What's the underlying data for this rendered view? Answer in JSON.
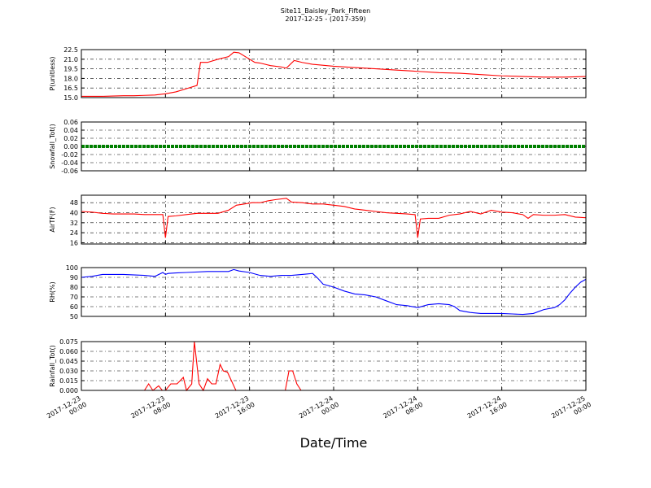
{
  "chart_data": [
    {
      "type": "line",
      "title": "Site11_Baisley_Park_Fifteen",
      "subtitle": "2017-12-25 - (2017-359)",
      "ylabel": "P(unitless)",
      "color": "#ff0000",
      "xlim": [
        "2017-12-23 00:00",
        "2017-12-25 00:00"
      ],
      "ylim": [
        15,
        22.5
      ],
      "yticks": [
        {
          "value": 15,
          "label": "15.0"
        },
        16.5,
        {
          "value": 18,
          "label": "18.0"
        },
        19.5,
        {
          "value": 21,
          "label": "21.0"
        },
        22.5
      ],
      "grid": true,
      "x": [
        "2017-12-23 00:00",
        "2017-12-23 01:00",
        "2017-12-23 02:00",
        "2017-12-23 03:00",
        "2017-12-23 04:00",
        "2017-12-23 05:00",
        "2017-12-23 06:00",
        "2017-12-23 07:00",
        "2017-12-23 08:00",
        "2017-12-23 09:00",
        "2017-12-23 10:00",
        "2017-12-23 11:00",
        "2017-12-23 11:20",
        "2017-12-23 12:00",
        "2017-12-23 13:00",
        "2017-12-23 14:00",
        "2017-12-23 14:30",
        "2017-12-23 15:00",
        "2017-12-23 16:00",
        "2017-12-23 16:30",
        "2017-12-23 17:00",
        "2017-12-23 18:00",
        "2017-12-23 19:00",
        "2017-12-23 19:30",
        "2017-12-23 20:15",
        "2017-12-23 21:00",
        "2017-12-23 22:00",
        "2017-12-24 00:00",
        "2017-12-24 02:00",
        "2017-12-24 04:00",
        "2017-12-24 06:00",
        "2017-12-24 08:00",
        "2017-12-24 10:00",
        "2017-12-24 12:00",
        "2017-12-24 14:00",
        "2017-12-24 16:00",
        "2017-12-24 18:00",
        "2017-12-24 20:00",
        "2017-12-24 22:00",
        "2017-12-25 00:00"
      ],
      "values": [
        15.2,
        15.2,
        15.2,
        15.25,
        15.3,
        15.3,
        15.35,
        15.4,
        15.6,
        15.9,
        16.4,
        16.9,
        20.5,
        20.5,
        21.0,
        21.4,
        22.1,
        22.0,
        21.0,
        20.5,
        20.4,
        20.0,
        19.8,
        19.6,
        20.8,
        20.5,
        20.2,
        19.9,
        19.7,
        19.5,
        19.3,
        19.1,
        18.9,
        18.8,
        18.6,
        18.4,
        18.3,
        18.2,
        18.2,
        18.3
      ]
    },
    {
      "type": "line",
      "ylabel": "Snowfall_Tot()",
      "color": "#008000",
      "xlim": [
        "2017-12-23 00:00",
        "2017-12-25 00:00"
      ],
      "ylim": [
        -0.06,
        0.06
      ],
      "yticks": [
        -0.06,
        -0.04,
        -0.02,
        {
          "value": 0,
          "label": "0.00"
        },
        0.02,
        0.04,
        0.06
      ],
      "grid": true,
      "x": [
        "2017-12-23 00:00",
        "2017-12-23 02:00",
        "2017-12-23 04:00",
        "2017-12-23 06:00",
        "2017-12-23 08:00",
        "2017-12-23 10:00",
        "2017-12-23 12:00",
        "2017-12-23 14:00",
        "2017-12-23 16:00",
        "2017-12-23 18:00",
        "2017-12-23 20:00",
        "2017-12-23 22:00",
        "2017-12-24 00:00",
        "2017-12-24 02:00",
        "2017-12-24 04:00",
        "2017-12-24 06:00",
        "2017-12-24 08:00",
        "2017-12-24 10:00",
        "2017-12-24 12:00",
        "2017-12-24 14:00",
        "2017-12-24 16:00",
        "2017-12-24 18:00",
        "2017-12-24 20:00",
        "2017-12-24 22:00",
        "2017-12-25 00:00"
      ],
      "values": [
        0,
        0,
        0,
        0,
        0,
        0,
        0,
        0,
        0,
        0,
        0,
        0,
        0,
        0,
        0,
        0,
        0,
        0,
        0,
        0,
        0,
        0,
        0,
        0,
        0
      ]
    },
    {
      "type": "line",
      "ylabel": "AirTF(F)",
      "color": "#ff0000",
      "xlim": [
        "2017-12-23 00:00",
        "2017-12-25 00:00"
      ],
      "ylim": [
        15,
        54
      ],
      "yticks": [
        16,
        24,
        32,
        40,
        48
      ],
      "grid": true,
      "x": [
        "2017-12-23 00:00",
        "2017-12-23 01:00",
        "2017-12-23 02:00",
        "2017-12-23 03:00",
        "2017-12-23 04:00",
        "2017-12-23 05:00",
        "2017-12-23 06:00",
        "2017-12-23 07:00",
        "2017-12-23 07:45",
        "2017-12-23 08:00",
        "2017-12-23 08:15",
        "2017-12-23 09:00",
        "2017-12-23 10:00",
        "2017-12-23 11:00",
        "2017-12-23 12:00",
        "2017-12-23 13:00",
        "2017-12-23 14:00",
        "2017-12-23 14:45",
        "2017-12-23 15:30",
        "2017-12-23 16:15",
        "2017-12-23 17:00",
        "2017-12-23 17:45",
        "2017-12-23 18:30",
        "2017-12-23 19:30",
        "2017-12-23 20:00",
        "2017-12-23 21:00",
        "2017-12-23 22:00",
        "2017-12-23 23:00",
        "2017-12-24 00:00",
        "2017-12-24 01:00",
        "2017-12-24 02:00",
        "2017-12-24 03:00",
        "2017-12-24 04:00",
        "2017-12-24 05:00",
        "2017-12-24 06:00",
        "2017-12-24 07:00",
        "2017-12-24 07:45",
        "2017-12-24 08:00",
        "2017-12-24 08:15",
        "2017-12-24 09:00",
        "2017-12-24 10:00",
        "2017-12-24 11:00",
        "2017-12-24 12:00",
        "2017-12-24 13:00",
        "2017-12-24 14:00",
        "2017-12-24 15:00",
        "2017-12-24 16:00",
        "2017-12-24 17:00",
        "2017-12-24 18:00",
        "2017-12-24 18:30",
        "2017-12-24 19:00",
        "2017-12-24 20:00",
        "2017-12-24 21:00",
        "2017-12-24 22:00",
        "2017-12-24 23:00",
        "2017-12-25 00:00"
      ],
      "values": [
        41,
        40.5,
        39.5,
        39,
        39,
        39,
        38.5,
        38.5,
        38.5,
        20,
        37,
        37.5,
        38.5,
        39.5,
        39.5,
        39.5,
        42,
        46,
        47,
        48,
        48,
        49.5,
        50.5,
        51.5,
        48.5,
        48,
        47,
        47,
        46,
        45,
        43,
        42,
        41,
        40,
        39.5,
        39,
        38.5,
        20,
        35,
        35.5,
        35.5,
        38,
        39,
        41,
        39,
        42,
        40.5,
        40,
        38.5,
        35.5,
        38.5,
        38,
        38,
        38.5,
        36.5,
        36
      ]
    },
    {
      "type": "line",
      "ylabel": "RH(%)",
      "color": "#0000ff",
      "xlim": [
        "2017-12-23 00:00",
        "2017-12-25 00:00"
      ],
      "ylim": [
        50,
        100
      ],
      "yticks": [
        50,
        60,
        70,
        80,
        90,
        100
      ],
      "grid": true,
      "x": [
        "2017-12-23 00:00",
        "2017-12-23 01:00",
        "2017-12-23 02:00",
        "2017-12-23 04:00",
        "2017-12-23 06:00",
        "2017-12-23 07:00",
        "2017-12-23 07:45",
        "2017-12-23 08:00",
        "2017-12-23 08:15",
        "2017-12-23 09:00",
        "2017-12-23 10:00",
        "2017-12-23 12:00",
        "2017-12-23 14:00",
        "2017-12-23 14:30",
        "2017-12-23 15:00",
        "2017-12-23 16:00",
        "2017-12-23 17:00",
        "2017-12-23 18:00",
        "2017-12-23 19:00",
        "2017-12-23 20:00",
        "2017-12-23 21:00",
        "2017-12-23 22:00",
        "2017-12-23 22:30",
        "2017-12-23 23:00",
        "2017-12-24 00:00",
        "2017-12-24 01:00",
        "2017-12-24 02:00",
        "2017-12-24 03:00",
        "2017-12-24 04:00",
        "2017-12-24 05:00",
        "2017-12-24 06:00",
        "2017-12-24 07:00",
        "2017-12-24 08:00",
        "2017-12-24 09:00",
        "2017-12-24 10:00",
        "2017-12-24 11:00",
        "2017-12-24 11:30",
        "2017-12-24 12:00",
        "2017-12-24 13:00",
        "2017-12-24 14:00",
        "2017-12-24 15:00",
        "2017-12-24 16:00",
        "2017-12-24 17:00",
        "2017-12-24 18:00",
        "2017-12-24 19:00",
        "2017-12-24 20:00",
        "2017-12-24 21:00",
        "2017-12-24 21:30",
        "2017-12-24 22:00",
        "2017-12-24 22:30",
        "2017-12-24 23:00",
        "2017-12-24 23:30",
        "2017-12-25 00:00"
      ],
      "values": [
        90,
        91,
        93,
        93,
        92,
        91,
        95,
        93,
        94,
        94.5,
        95,
        96,
        96,
        98,
        96.5,
        95,
        92,
        91,
        92,
        92,
        93,
        94,
        89,
        83,
        80,
        76,
        73,
        72,
        70,
        66,
        62,
        61,
        59,
        62,
        63,
        62,
        60,
        56,
        54,
        53,
        53,
        53,
        52.5,
        52,
        53,
        57,
        59,
        62,
        67,
        74,
        80,
        85,
        88
      ]
    },
    {
      "type": "line",
      "ylabel": "Rainfall_Tot()",
      "xlabel": "Date/Time",
      "color": "#ff0000",
      "xlim": [
        "2017-12-23 00:00",
        "2017-12-25 00:00"
      ],
      "ylim": [
        0,
        0.075
      ],
      "xticks": [
        "2017-12-23 00:00",
        "2017-12-23 08:00",
        "2017-12-23 16:00",
        "2017-12-24 00:00",
        "2017-12-24 08:00",
        "2017-12-24 16:00",
        "2017-12-25 00:00"
      ],
      "yticks": [
        {
          "value": 0,
          "label": "0.000"
        },
        0.015,
        {
          "value": 0.03,
          "label": "0.030"
        },
        0.045,
        {
          "value": 0.06,
          "label": "0.060"
        },
        0.075
      ],
      "grid": true,
      "x": [
        "2017-12-23 00:00",
        "2017-12-23 06:00",
        "2017-12-23 06:24",
        "2017-12-23 06:48",
        "2017-12-23 07:21",
        "2017-12-23 07:42",
        "2017-12-23 08:00",
        "2017-12-23 08:30",
        "2017-12-23 09:06",
        "2017-12-23 09:42",
        "2017-12-23 10:00",
        "2017-12-23 10:30",
        "2017-12-23 10:45",
        "2017-12-23 11:12",
        "2017-12-23 11:36",
        "2017-12-23 12:00",
        "2017-12-23 12:24",
        "2017-12-23 12:48",
        "2017-12-23 13:12",
        "2017-12-23 13:30",
        "2017-12-23 13:54",
        "2017-12-23 14:42",
        "2017-12-23 19:24",
        "2017-12-23 19:45",
        "2017-12-23 20:06",
        "2017-12-23 20:30",
        "2017-12-23 20:54",
        "2017-12-25 00:00"
      ],
      "values": [
        0,
        0,
        0.01,
        0,
        0.007,
        0,
        0,
        0.01,
        0.01,
        0.02,
        0,
        0.01,
        0.075,
        0.01,
        0,
        0.018,
        0.01,
        0.01,
        0.04,
        0.03,
        0.028,
        0,
        0,
        0.03,
        0.03,
        0.01,
        0,
        0
      ]
    }
  ]
}
